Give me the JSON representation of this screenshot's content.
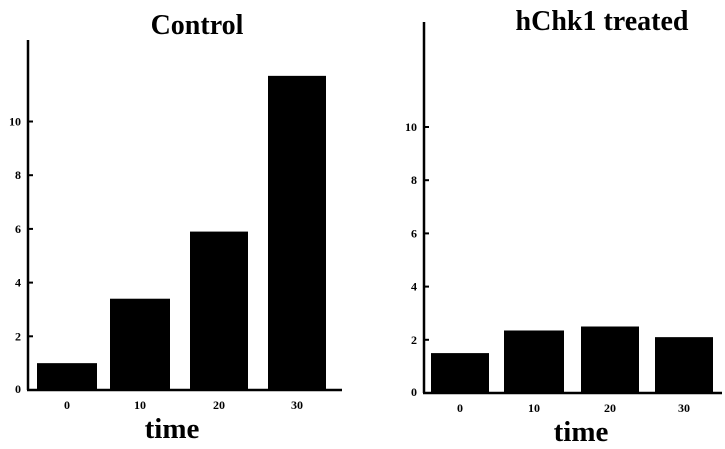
{
  "chart_data": [
    {
      "type": "bar",
      "title": "Control",
      "xlabel": "time",
      "ylabel": "",
      "categories": [
        "0",
        "10",
        "20",
        "30"
      ],
      "values": [
        1.0,
        3.4,
        5.9,
        11.7
      ],
      "yticks": [
        "2",
        "4",
        "6",
        "8",
        "10"
      ],
      "ylim": [
        0,
        13
      ],
      "legend": "none",
      "grid": false,
      "bar_color": "#000000"
    },
    {
      "type": "bar",
      "title": "hChk1 treated",
      "xlabel": "time",
      "ylabel": "",
      "categories": [
        "0",
        "10",
        "20",
        "30"
      ],
      "values": [
        1.5,
        2.35,
        2.5,
        2.1
      ],
      "yticks": [
        "2",
        "4",
        "6",
        "8",
        "10"
      ],
      "ylim": [
        0,
        13.3
      ],
      "legend": "none",
      "grid": false,
      "bar_color": "#000000"
    }
  ]
}
